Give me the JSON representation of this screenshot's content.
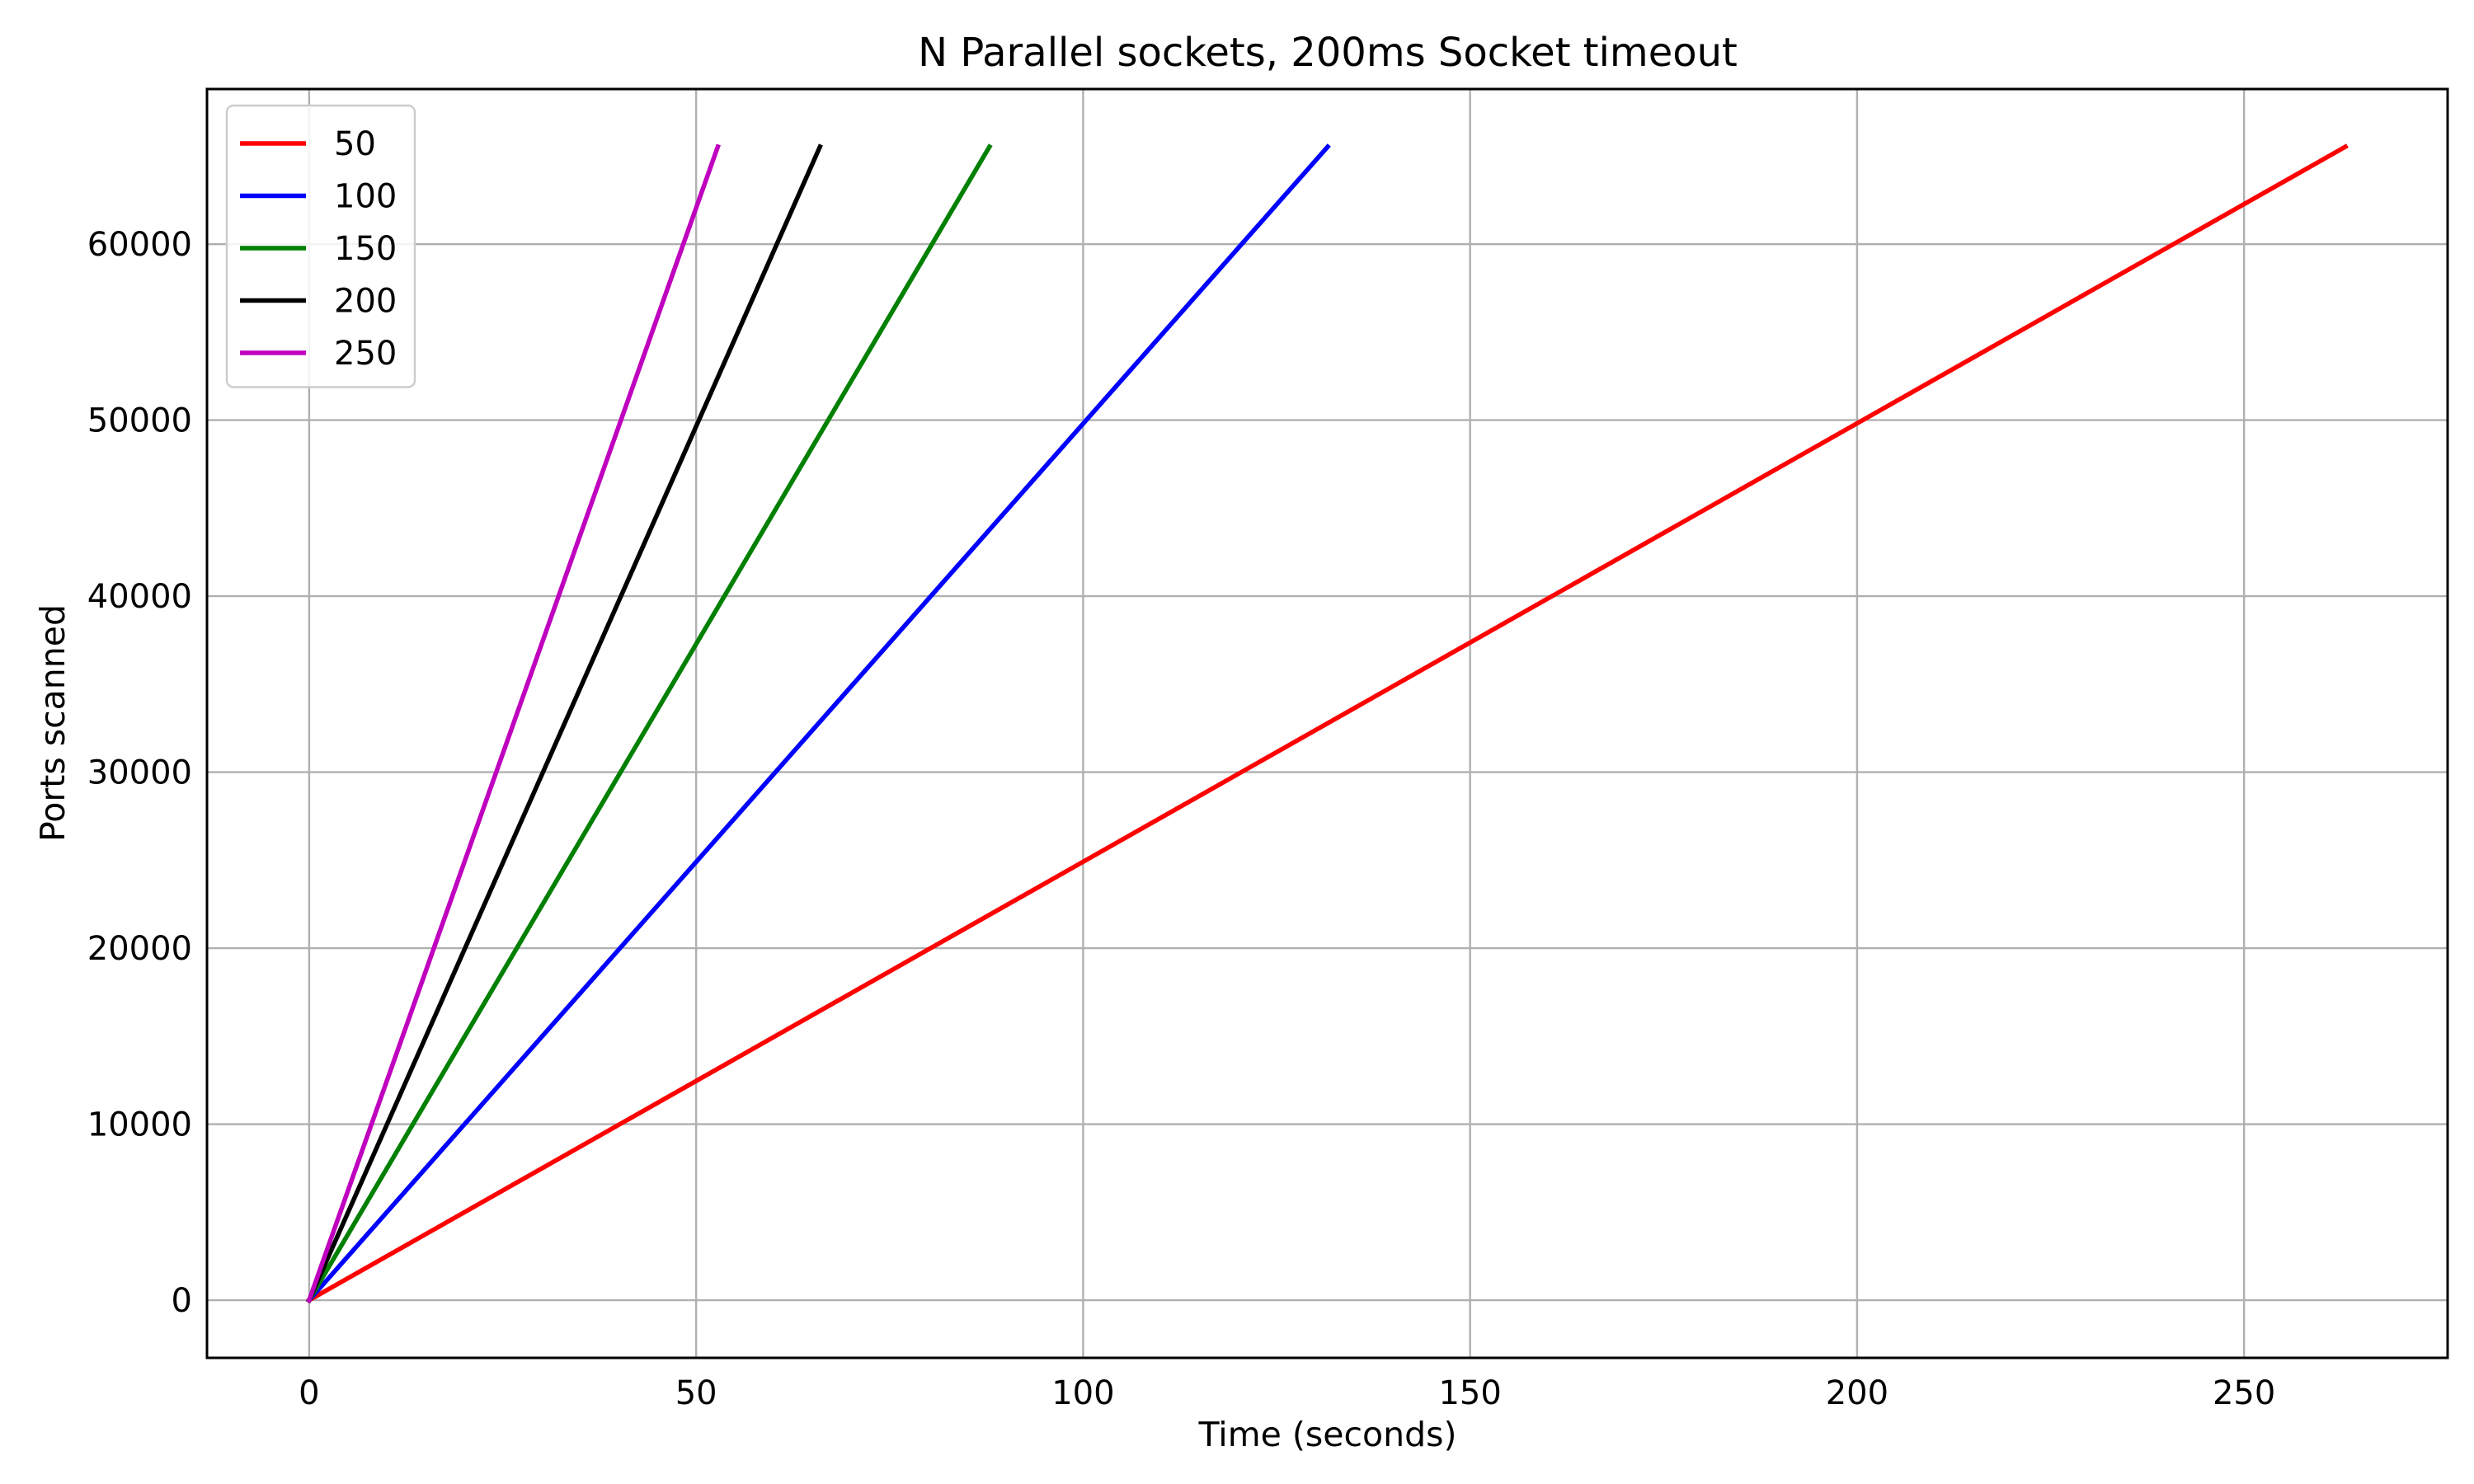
{
  "chart_data": {
    "type": "line",
    "title": "N Parallel sockets, 200ms Socket timeout",
    "xlabel": "Time (seconds)",
    "ylabel": "Ports scanned",
    "xlim": [
      -13.2,
      276.3
    ],
    "ylim": [
      -3277,
      68812
    ],
    "xticks": [
      0,
      50,
      100,
      150,
      200,
      250
    ],
    "yticks": [
      0,
      10000,
      20000,
      30000,
      40000,
      50000,
      60000
    ],
    "xtick_labels": [
      "0",
      "50",
      "100",
      "150",
      "200",
      "250"
    ],
    "ytick_labels": [
      "0",
      "10000",
      "20000",
      "30000",
      "40000",
      "50000",
      "60000"
    ],
    "grid": true,
    "legend_position": "upper-left",
    "series": [
      {
        "name": "50",
        "color": "#ff0000",
        "x": [
          0,
          263.1
        ],
        "y": [
          0,
          65535
        ]
      },
      {
        "name": "100",
        "color": "#0000ff",
        "x": [
          0,
          131.6
        ],
        "y": [
          0,
          65535
        ]
      },
      {
        "name": "150",
        "color": "#008000",
        "x": [
          0,
          87.9
        ],
        "y": [
          0,
          65535
        ]
      },
      {
        "name": "200",
        "color": "#000000",
        "x": [
          0,
          66.0
        ],
        "y": [
          0,
          65535
        ]
      },
      {
        "name": "250",
        "color": "#bf00bf",
        "x": [
          0,
          52.8
        ],
        "y": [
          0,
          65535
        ]
      }
    ]
  }
}
